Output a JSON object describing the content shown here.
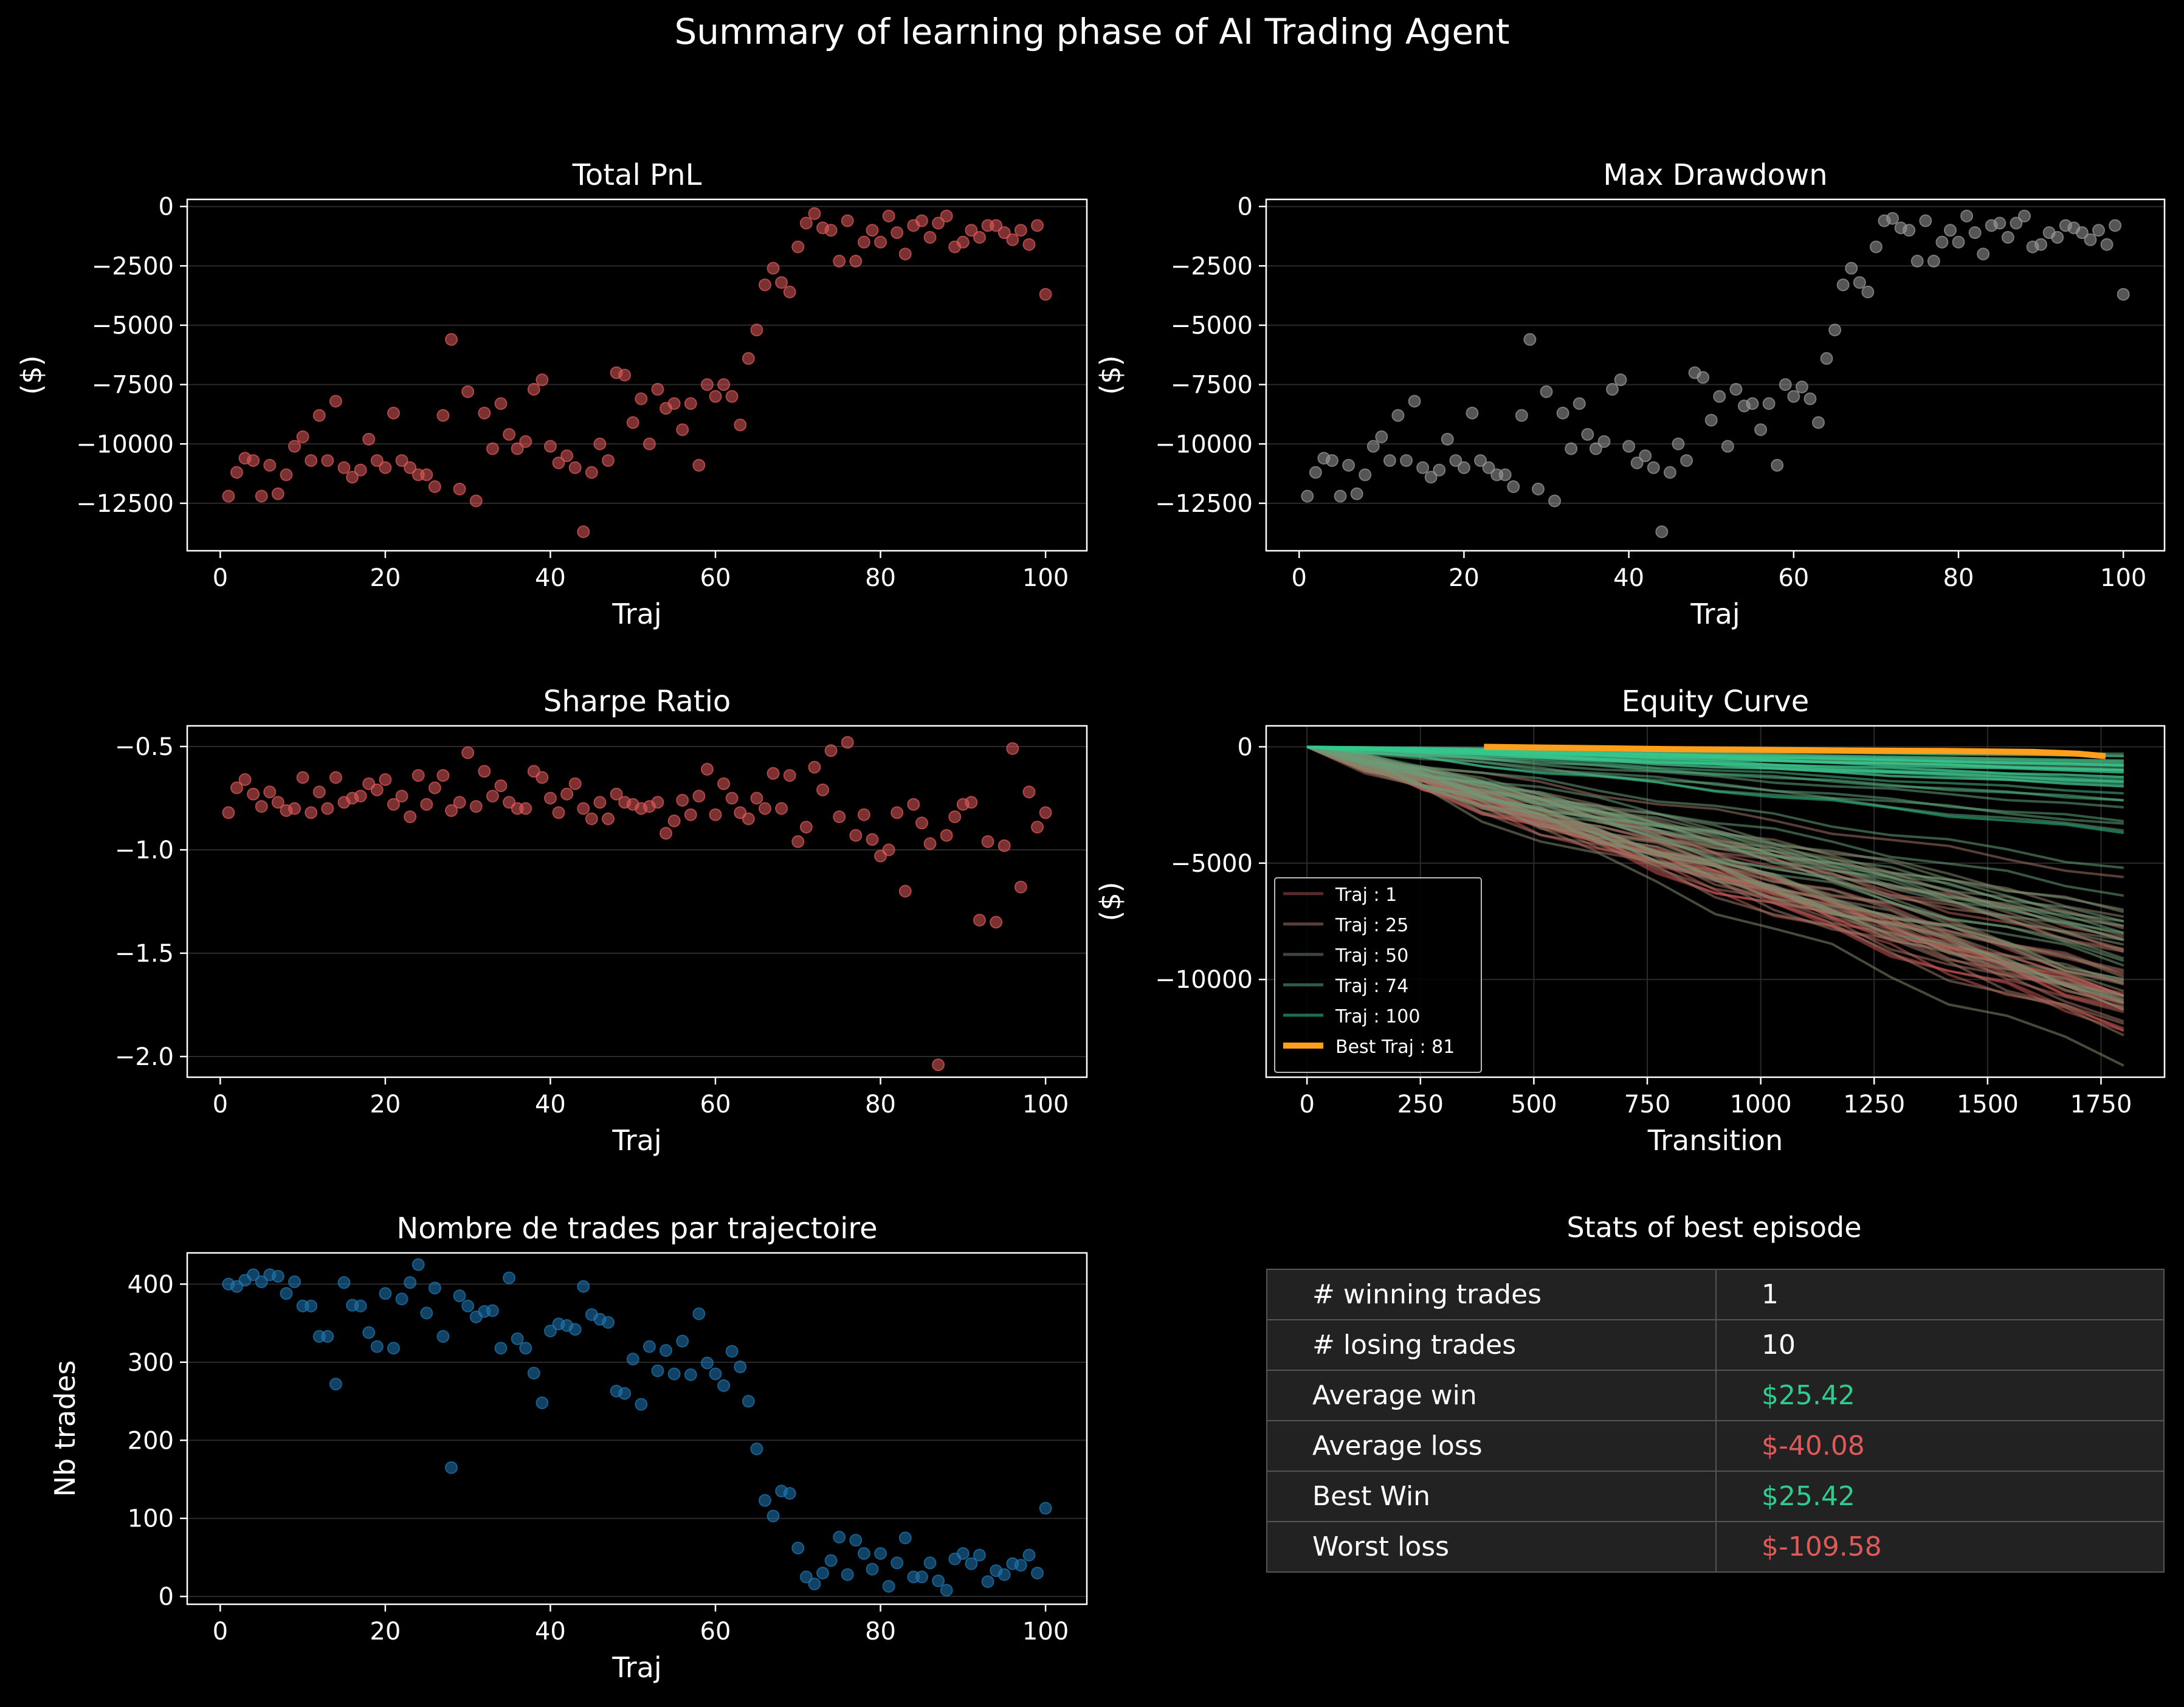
{
  "suptitle": "Summary of learning phase of AI Trading Agent",
  "colors": {
    "red": "#e05a5a",
    "grey": "#9a9a9a",
    "blue": "#1f77b4",
    "green": "#2ecc8f",
    "orange": "#ff9f1c"
  },
  "chart_data": [
    {
      "id": "pnl",
      "type": "scatter",
      "title": "Total PnL",
      "xlabel": "Traj",
      "ylabel": "($)",
      "xlim": [
        -4,
        105
      ],
      "ylim": [
        -14500,
        300
      ],
      "xticks": [
        0,
        20,
        40,
        60,
        80,
        100
      ],
      "yticks": [
        0,
        -2500,
        -5000,
        -7500,
        -10000,
        -12500
      ],
      "color": "red",
      "x": [
        1,
        2,
        3,
        4,
        5,
        6,
        7,
        8,
        9,
        10,
        11,
        12,
        13,
        14,
        15,
        16,
        17,
        18,
        19,
        20,
        21,
        22,
        23,
        24,
        25,
        26,
        27,
        28,
        29,
        30,
        31,
        32,
        33,
        34,
        35,
        36,
        37,
        38,
        39,
        40,
        41,
        42,
        43,
        44,
        45,
        46,
        47,
        48,
        49,
        50,
        51,
        52,
        53,
        54,
        55,
        56,
        57,
        58,
        59,
        60,
        61,
        62,
        63,
        64,
        65,
        66,
        67,
        68,
        69,
        70,
        71,
        72,
        73,
        74,
        75,
        76,
        77,
        78,
        79,
        80,
        81,
        82,
        83,
        84,
        85,
        86,
        87,
        88,
        89,
        90,
        91,
        92,
        93,
        94,
        95,
        96,
        97,
        98,
        99,
        100
      ],
      "y": [
        -12200,
        -11200,
        -10600,
        -10700,
        -12200,
        -10900,
        -12100,
        -11300,
        -10100,
        -9700,
        -10700,
        -8800,
        -10700,
        -8200,
        -11000,
        -11400,
        -11100,
        -9800,
        -10700,
        -11000,
        -8700,
        -10700,
        -11000,
        -11300,
        -11300,
        -11800,
        -8800,
        -5600,
        -11900,
        -7800,
        -12400,
        -8700,
        -10200,
        -8300,
        -9600,
        -10200,
        -9900,
        -7700,
        -7300,
        -10100,
        -10800,
        -10500,
        -11000,
        -13700,
        -11200,
        -10000,
        -10700,
        -7000,
        -7100,
        -9100,
        -8100,
        -10000,
        -7700,
        -8500,
        -8300,
        -9400,
        -8300,
        -10900,
        -7500,
        -8000,
        -7500,
        -8000,
        -9200,
        -6400,
        -5200,
        -3300,
        -2600,
        -3200,
        -3600,
        -1700,
        -700,
        -300,
        -900,
        -1000,
        -2300,
        -600,
        -2300,
        -1500,
        -1000,
        -1500,
        -400,
        -1100,
        -2000,
        -800,
        -600,
        -1300,
        -700,
        -400,
        -1700,
        -1500,
        -1000,
        -1300,
        -800,
        -800,
        -1100,
        -1400,
        -1000,
        -1600,
        -800,
        -3700
      ]
    },
    {
      "id": "dd",
      "type": "scatter",
      "title": "Max Drawdown",
      "xlabel": "Traj",
      "ylabel": "($)",
      "xlim": [
        -4,
        105
      ],
      "ylim": [
        -14500,
        300
      ],
      "xticks": [
        0,
        20,
        40,
        60,
        80,
        100
      ],
      "yticks": [
        0,
        -2500,
        -5000,
        -7500,
        -10000,
        -12500
      ],
      "color": "grey",
      "x": [
        1,
        2,
        3,
        4,
        5,
        6,
        7,
        8,
        9,
        10,
        11,
        12,
        13,
        14,
        15,
        16,
        17,
        18,
        19,
        20,
        21,
        22,
        23,
        24,
        25,
        26,
        27,
        28,
        29,
        30,
        31,
        32,
        33,
        34,
        35,
        36,
        37,
        38,
        39,
        40,
        41,
        42,
        43,
        44,
        45,
        46,
        47,
        48,
        49,
        50,
        51,
        52,
        53,
        54,
        55,
        56,
        57,
        58,
        59,
        60,
        61,
        62,
        63,
        64,
        65,
        66,
        67,
        68,
        69,
        70,
        71,
        72,
        73,
        74,
        75,
        76,
        77,
        78,
        79,
        80,
        81,
        82,
        83,
        84,
        85,
        86,
        87,
        88,
        89,
        90,
        91,
        92,
        93,
        94,
        95,
        96,
        97,
        98,
        99,
        100
      ],
      "y": [
        -12200,
        -11200,
        -10600,
        -10700,
        -12200,
        -10900,
        -12100,
        -11300,
        -10100,
        -9700,
        -10700,
        -8800,
        -10700,
        -8200,
        -11000,
        -11400,
        -11100,
        -9800,
        -10700,
        -11000,
        -8700,
        -10700,
        -11000,
        -11300,
        -11300,
        -11800,
        -8800,
        -5600,
        -11900,
        -7800,
        -12400,
        -8700,
        -10200,
        -8300,
        -9600,
        -10200,
        -9900,
        -7700,
        -7300,
        -10100,
        -10800,
        -10500,
        -11000,
        -13700,
        -11200,
        -10000,
        -10700,
        -7000,
        -7200,
        -9000,
        -8000,
        -10100,
        -7700,
        -8400,
        -8300,
        -9400,
        -8300,
        -10900,
        -7500,
        -8000,
        -7600,
        -8100,
        -9100,
        -6400,
        -5200,
        -3300,
        -2600,
        -3200,
        -3600,
        -1700,
        -600,
        -500,
        -900,
        -1000,
        -2300,
        -600,
        -2300,
        -1500,
        -1000,
        -1500,
        -400,
        -1100,
        -2000,
        -800,
        -700,
        -1300,
        -700,
        -400,
        -1700,
        -1600,
        -1100,
        -1300,
        -800,
        -900,
        -1100,
        -1400,
        -1000,
        -1600,
        -800,
        -3700
      ]
    },
    {
      "id": "sharpe",
      "type": "scatter",
      "title": "Sharpe Ratio",
      "xlabel": "Traj",
      "ylabel": "",
      "xlim": [
        -4,
        105
      ],
      "ylim": [
        -2.1,
        -0.4
      ],
      "xticks": [
        0,
        20,
        40,
        60,
        80,
        100
      ],
      "yticks": [
        -0.5,
        -1.0,
        -1.5,
        -2.0
      ],
      "ytick_labels": [
        "−0.5",
        "−1.0",
        "−1.5",
        "−2.0"
      ],
      "color": "red",
      "x": [
        1,
        2,
        3,
        4,
        5,
        6,
        7,
        8,
        9,
        10,
        11,
        12,
        13,
        14,
        15,
        16,
        17,
        18,
        19,
        20,
        21,
        22,
        23,
        24,
        25,
        26,
        27,
        28,
        29,
        30,
        31,
        32,
        33,
        34,
        35,
        36,
        37,
        38,
        39,
        40,
        41,
        42,
        43,
        44,
        45,
        46,
        47,
        48,
        49,
        50,
        51,
        52,
        53,
        54,
        55,
        56,
        57,
        58,
        59,
        60,
        61,
        62,
        63,
        64,
        65,
        66,
        67,
        68,
        69,
        70,
        71,
        72,
        73,
        74,
        75,
        76,
        77,
        78,
        79,
        80,
        81,
        82,
        83,
        84,
        85,
        86,
        87,
        88,
        89,
        90,
        91,
        92,
        93,
        94,
        95,
        96,
        97,
        98,
        99,
        100
      ],
      "y": [
        -0.82,
        -0.7,
        -0.66,
        -0.73,
        -0.79,
        -0.72,
        -0.77,
        -0.81,
        -0.8,
        -0.65,
        -0.82,
        -0.72,
        -0.8,
        -0.65,
        -0.77,
        -0.75,
        -0.74,
        -0.68,
        -0.71,
        -0.66,
        -0.78,
        -0.74,
        -0.84,
        -0.64,
        -0.78,
        -0.7,
        -0.64,
        -0.81,
        -0.77,
        -0.53,
        -0.79,
        -0.62,
        -0.74,
        -0.69,
        -0.77,
        -0.8,
        -0.8,
        -0.62,
        -0.65,
        -0.75,
        -0.82,
        -0.73,
        -0.68,
        -0.8,
        -0.85,
        -0.77,
        -0.85,
        -0.73,
        -0.77,
        -0.78,
        -0.8,
        -0.79,
        -0.77,
        -0.92,
        -0.86,
        -0.76,
        -0.83,
        -0.74,
        -0.61,
        -0.83,
        -0.68,
        -0.75,
        -0.82,
        -0.85,
        -0.75,
        -0.8,
        -0.63,
        -0.8,
        -0.64,
        -0.96,
        -0.89,
        -0.6,
        -0.71,
        -0.52,
        -0.84,
        -0.48,
        -0.93,
        -0.83,
        -0.95,
        -1.03,
        -1.0,
        -0.82,
        -1.2,
        -0.78,
        -0.87,
        -0.97,
        -2.04,
        -0.93,
        -0.84,
        -0.78,
        -0.77,
        -1.34,
        -0.96,
        -1.35,
        -0.98,
        -0.51,
        -1.18,
        -0.72,
        -0.89,
        -0.82
      ]
    },
    {
      "id": "trades",
      "type": "scatter",
      "title": "Nombre de trades par trajectoire",
      "xlabel": "Traj",
      "ylabel": "Nb trades",
      "xlim": [
        -4,
        105
      ],
      "ylim": [
        -10,
        440
      ],
      "xticks": [
        0,
        20,
        40,
        60,
        80,
        100
      ],
      "yticks": [
        0,
        100,
        200,
        300,
        400
      ],
      "color": "blue",
      "x": [
        1,
        2,
        3,
        4,
        5,
        6,
        7,
        8,
        9,
        10,
        11,
        12,
        13,
        14,
        15,
        16,
        17,
        18,
        19,
        20,
        21,
        22,
        23,
        24,
        25,
        26,
        27,
        28,
        29,
        30,
        31,
        32,
        33,
        34,
        35,
        36,
        37,
        38,
        39,
        40,
        41,
        42,
        43,
        44,
        45,
        46,
        47,
        48,
        49,
        50,
        51,
        52,
        53,
        54,
        55,
        56,
        57,
        58,
        59,
        60,
        61,
        62,
        63,
        64,
        65,
        66,
        67,
        68,
        69,
        70,
        71,
        72,
        73,
        74,
        75,
        76,
        77,
        78,
        79,
        80,
        81,
        82,
        83,
        84,
        85,
        86,
        87,
        88,
        89,
        90,
        91,
        92,
        93,
        94,
        95,
        96,
        97,
        98,
        99,
        100
      ],
      "y": [
        400,
        397,
        405,
        412,
        403,
        412,
        410,
        388,
        403,
        372,
        372,
        333,
        333,
        272,
        402,
        373,
        372,
        338,
        320,
        388,
        318,
        381,
        402,
        425,
        363,
        395,
        333,
        165,
        385,
        372,
        358,
        365,
        366,
        318,
        408,
        330,
        318,
        286,
        248,
        340,
        349,
        347,
        342,
        397,
        361,
        355,
        351,
        263,
        260,
        304,
        246,
        320,
        289,
        315,
        285,
        327,
        284,
        362,
        299,
        285,
        270,
        314,
        294,
        250,
        189,
        123,
        103,
        135,
        132,
        62,
        25,
        16,
        30,
        46,
        76,
        28,
        72,
        55,
        35,
        55,
        13,
        43,
        75,
        25,
        25,
        43,
        20,
        8,
        48,
        55,
        42,
        53,
        19,
        33,
        28,
        42,
        40,
        53,
        30,
        113
      ]
    },
    {
      "id": "equity",
      "type": "line",
      "title": "Equity Curve",
      "xlabel": "Transition",
      "ylabel": "($)",
      "xlim": [
        -90,
        1890
      ],
      "ylim": [
        -14200,
        900
      ],
      "xticks": [
        0,
        250,
        500,
        750,
        1000,
        1250,
        1500,
        1750
      ],
      "yticks": [
        0,
        -5000,
        -10000
      ],
      "legend": "lower-left",
      "legend_entries": [
        {
          "name": "Traj : 1",
          "color": "#5a2a2a"
        },
        {
          "name": "Traj : 25",
          "color": "#5a3e3e"
        },
        {
          "name": "Traj : 50",
          "color": "#3e463e"
        },
        {
          "name": "Traj : 74",
          "color": "#2e5e4a"
        },
        {
          "name": "Traj : 100",
          "color": "#1e6e50"
        },
        {
          "name": "Best Traj : 81",
          "color": "#ff9f1c"
        }
      ],
      "series_end_values": [
        -12200,
        -11200,
        -10600,
        -10700,
        -12200,
        -10900,
        -12100,
        -11300,
        -10100,
        -9700,
        -10700,
        -8800,
        -10700,
        -8200,
        -11000,
        -11400,
        -11100,
        -9800,
        -10700,
        -11000,
        -8700,
        -10700,
        -11000,
        -11300,
        -11300,
        -11800,
        -8800,
        -5600,
        -11900,
        -7800,
        -12400,
        -8700,
        -10200,
        -8300,
        -9600,
        -10200,
        -9900,
        -7700,
        -7300,
        -10100,
        -10800,
        -10500,
        -11000,
        -13700,
        -11200,
        -10000,
        -10700,
        -7000,
        -7100,
        -9100,
        -8100,
        -10000,
        -7700,
        -8500,
        -8300,
        -9400,
        -8300,
        -10900,
        -7500,
        -8000,
        -7500,
        -8000,
        -9200,
        -6400,
        -5200,
        -3300,
        -2600,
        -3200,
        -3600,
        -1700,
        -700,
        -300,
        -900,
        -1000,
        -2300,
        -600,
        -2300,
        -1500,
        -1000,
        -1500,
        -400,
        -1100,
        -2000,
        -800,
        -600,
        -1300,
        -700,
        -400,
        -1700,
        -1500,
        -1000,
        -1300,
        -800,
        -800,
        -1100,
        -1400,
        -1000,
        -1600,
        -800,
        -3700
      ],
      "series_end_x": 1800,
      "best": {
        "x": [
          390,
          600,
          800,
          1000,
          1200,
          1400,
          1500,
          1600,
          1700,
          1760
        ],
        "y": [
          0,
          -50,
          -100,
          -130,
          -160,
          -180,
          -200,
          -220,
          -300,
          -400
        ]
      }
    }
  ],
  "stats": {
    "title": "Stats of best episode",
    "rows": [
      {
        "label": "# winning trades",
        "value": "1",
        "tone": "neutral"
      },
      {
        "label": "# losing trades",
        "value": "10",
        "tone": "neutral"
      },
      {
        "label": "Average win",
        "value": "$25.42",
        "tone": "pos"
      },
      {
        "label": "Average loss",
        "value": "$-40.08",
        "tone": "neg"
      },
      {
        "label": "Best Win",
        "value": "$25.42",
        "tone": "pos"
      },
      {
        "label": "Worst loss",
        "value": "$-109.58",
        "tone": "neg"
      }
    ]
  }
}
